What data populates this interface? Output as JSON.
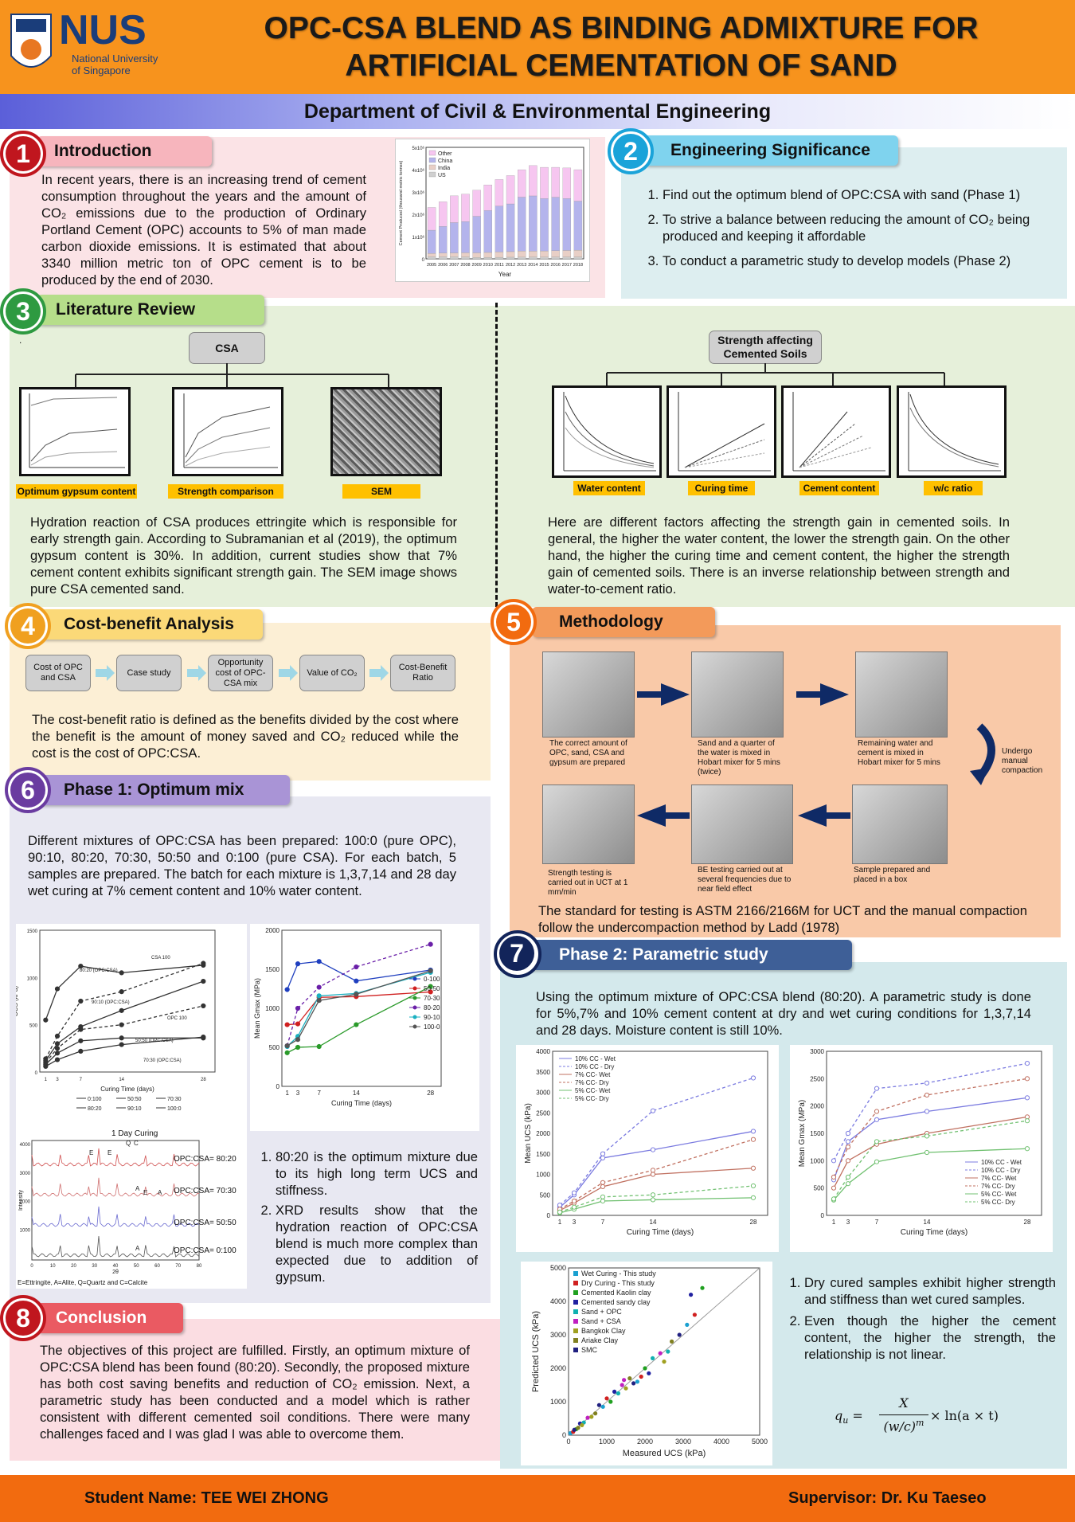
{
  "header": {
    "title": "OPC-CSA BLEND AS BINDING ADMIXTURE FOR\nARTIFICIAL CEMENTATION OF SAND",
    "nus": "NUS",
    "nus_sub1": "National University",
    "nus_sub2": "of Singapore",
    "dept": "Department of Civil & Environmental Engineering"
  },
  "s1": {
    "num": "1",
    "title": "Introduction",
    "text": "In recent years, there is an increasing trend of cement consumption throughout the years and the amount of CO₂ emissions due to the production of Ordinary Portland Cement (OPC) accounts to 5% of man made carbon dioxide emissions. It is estimated that about 3340 million metric ton of OPC cement is to be produced by the end of 2030."
  },
  "s1_chart": {
    "type": "bar",
    "ylabel": "Cement Produced (thousand metric tonnes)",
    "xlabel": "Year",
    "categories": [
      "2005",
      "2006",
      "2007",
      "2008",
      "2009",
      "2010",
      "2011",
      "2012",
      "2013",
      "2014",
      "2015",
      "2016",
      "2017",
      "2018"
    ],
    "legend": [
      "Other",
      "China",
      "India",
      "US"
    ],
    "ytick_labels": [
      "0",
      "1x10⁶",
      "2x10⁶",
      "3x10⁶",
      "4x10⁶",
      "5x10⁶"
    ],
    "ylim": [
      0,
      5000000
    ],
    "colors": [
      "#f6c6f0",
      "#b4b4ec",
      "#e8cfc6",
      "#cfcfcf"
    ],
    "series": [
      {
        "name": "US",
        "values": [
          99000,
          98000,
          96000,
          87000,
          64000,
          67000,
          68000,
          74000,
          77000,
          83000,
          84000,
          85000,
          86000,
          88000
        ]
      },
      {
        "name": "India",
        "values": [
          145000,
          160000,
          170000,
          185000,
          205000,
          220000,
          240000,
          250000,
          270000,
          260000,
          270000,
          280000,
          290000,
          300000
        ]
      },
      {
        "name": "China",
        "values": [
          1040000,
          1200000,
          1360000,
          1400000,
          1640000,
          1880000,
          2060000,
          2140000,
          2420000,
          2480000,
          2350000,
          2400000,
          2330000,
          2200000
        ]
      },
      {
        "name": "Other",
        "values": [
          1020000,
          1100000,
          1200000,
          1230000,
          1170000,
          1150000,
          1190000,
          1270000,
          1230000,
          1360000,
          1400000,
          1340000,
          1370000,
          1410000
        ]
      }
    ]
  },
  "s2": {
    "num": "2",
    "title": "Engineering Significance",
    "items": [
      "Find out the optimum blend of OPC:CSA with sand (Phase 1)",
      "To strive a balance between reducing the amount of CO₂ being produced and keeping it affordable",
      "To conduct a parametric study to develop models (Phase 2)"
    ]
  },
  "s3": {
    "num": "3",
    "title": "Literature Review",
    "dot": ".",
    "csa": "CSA",
    "labels": [
      "Optimum gypsum content",
      "Strength comparison",
      "SEM"
    ],
    "text_left": "Hydration reaction of CSA produces ettringite which is responsible for early strength gain. According to Subramanian et al (2019), the optimum gypsum content is 30%. In addition, current studies show that 7% cement content exhibits significant strength gain. The SEM image shows pure CSA cemented sand.",
    "strength_box": "Strength affecting\nCemented Soils",
    "factors": [
      "Water content",
      "Curing time",
      "Cement content",
      "w/c ratio"
    ],
    "text_right": "Here are different factors affecting the strength gain in cemented soils. In general, the higher the water content, the lower the strength gain. On the other hand, the higher the curing time and cement content, the higher the strength gain of cemented soils. There is an inverse relationship between strength and water-to-cement ratio."
  },
  "s4": {
    "num": "4",
    "title": "Cost-benefit Analysis",
    "flow": [
      "Cost of OPC and CSA",
      "Case study",
      "Opportunity cost of OPC-CSA mix",
      "Value of CO₂",
      "Cost-Benefit Ratio"
    ],
    "text": "The cost-benefit ratio is defined as the benefits divided by the cost where the benefit is the amount of money saved and CO₂ reduced while the cost is the cost of OPC:CSA."
  },
  "s5": {
    "num": "5",
    "title": "Methodology",
    "captions": [
      "The correct amount of OPC, sand, CSA and gypsum are prepared",
      "Sand and a quarter of the water is mixed in Hobart mixer for 5 mins (twice)",
      "Remaining water and cement is mixed in Hobart mixer for 5 mins",
      "Undergo manual compaction",
      "Sample prepared and placed in a box",
      "BE testing carried out at several frequencies due to near field effect",
      "Strength testing is carried out in UCT at 1 mm/min"
    ],
    "text": "The standard for testing is ASTM 2166/2166M for UCT and the manual compaction follow the undercompaction method by Ladd (1978)"
  },
  "s6": {
    "num": "6",
    "title": "Phase 1: Optimum mix",
    "text": "Different mixtures of OPC:CSA has been prepared: 100:0 (pure OPC), 90:10, 80:20, 70:30, 50:50 and 0:100 (pure CSA). For each batch, 5 samples are prepared. The batch for each mixture is 1,3,7,14 and 28 day wet curing at 7% cement content and 10% water content.",
    "items": [
      "80:20 is the optimum mixture due to its high long term UCS and stiffness.",
      "XRD results show that the hydration reaction of OPC:CSA blend is much more complex than expected due to addition of gypsum."
    ],
    "xrd_title": "1 Day Curing",
    "xrd_note": "E=Ettringite, A=Alite, Q=Quartz and C=Calcite",
    "xrd_labels": [
      "OPC:CSA= 80:20",
      "OPC:CSA= 70:30",
      "OPC:CSA= 50:50",
      "OPC:CSA= 0:100"
    ]
  },
  "chart_ucs": {
    "type": "line",
    "xlabel": "Curing Time (days)",
    "ylabel": "UCS (kPa)",
    "x": [
      1,
      3,
      7,
      14,
      28
    ],
    "ylim": [
      0,
      1500
    ],
    "xticks": [
      "1",
      "3",
      "7",
      "14",
      "28"
    ],
    "yticks": [
      "0",
      "500",
      "1000",
      "1500"
    ],
    "series": [
      {
        "name": "0:100",
        "values": [
          550,
          880,
          1120,
          1050,
          1130
        ]
      },
      {
        "name": "80:20",
        "values": [
          140,
          380,
          750,
          850,
          1150
        ]
      },
      {
        "name": "90:10",
        "values": [
          120,
          300,
          480,
          650,
          960
        ]
      },
      {
        "name": "100:0",
        "values": [
          100,
          250,
          450,
          500,
          700
        ]
      },
      {
        "name": "50:50",
        "values": [
          80,
          200,
          330,
          360,
          360
        ]
      },
      {
        "name": "70:30",
        "values": [
          60,
          130,
          220,
          290,
          370
        ]
      }
    ],
    "annotations": [
      "CSA 100",
      "80:20 (OPC:CSA)",
      "OPC 100",
      "90:10 (OPC:CSA)",
      "50:50 (OPC:CSA)",
      "70:30 (OPC:CSA)"
    ],
    "legend": [
      "0:100",
      "50:50",
      "70:30",
      "80:20",
      "90:10",
      "100:0"
    ]
  },
  "chart_gmax": {
    "type": "line",
    "xlabel": "Curing Time (days)",
    "ylabel": "Mean Gmax (MPa)",
    "x": [
      1,
      3,
      7,
      14,
      28
    ],
    "ylim": [
      0,
      2000
    ],
    "xticks": [
      "1",
      "3",
      "7",
      "14",
      "28"
    ],
    "yticks": [
      "0",
      "500",
      "1000",
      "1500",
      "2000"
    ],
    "series": [
      {
        "name": "0-100",
        "values": [
          1240,
          1570,
          1600,
          1350,
          1490
        ]
      },
      {
        "name": "50-50",
        "values": [
          790,
          800,
          1140,
          1150,
          1210
        ]
      },
      {
        "name": "70-30",
        "values": [
          430,
          500,
          510,
          790,
          1280
        ]
      },
      {
        "name": "80-20",
        "values": [
          520,
          1000,
          1270,
          1530,
          1820
        ]
      },
      {
        "name": "90-10",
        "values": [
          510,
          640,
          1160,
          1190,
          1460
        ]
      },
      {
        "name": "100-0",
        "values": [
          520,
          600,
          1100,
          1180,
          1480
        ]
      }
    ],
    "colors": [
      "#1f3fbf",
      "#d02020",
      "#2a9a2a",
      "#6a1fa8",
      "#1ab0c0",
      "#555555"
    ]
  },
  "s7": {
    "num": "7",
    "title": "Phase 2: Parametric study",
    "text": "Using the optimum mixture of OPC:CSA blend (80:20). A parametric study is done for 5%,7% and 10% cement content at dry and wet curing conditions for 1,3,7,14 and 28 days. Moisture content is still 10%.",
    "items": [
      "Dry cured samples exhibit higher strength and stiffness than wet cured samples.",
      "Even though the higher the cement content, the higher the strength, the relationship is not linear."
    ],
    "formula_lhs": "q",
    "formula_sub": "u",
    "formula_eq": " = ",
    "formula_num": "X",
    "formula_den": "(w/c)",
    "formula_exp": "m",
    "formula_rhs": " × ln(a × t)"
  },
  "chart_p2_ucs": {
    "type": "line",
    "xlabel": "Curing Time (days)",
    "ylabel": "Mean UCS (kPa)",
    "x": [
      1,
      3,
      7,
      14,
      28
    ],
    "ylim": [
      0,
      4000
    ],
    "xticks": [
      "1",
      "3",
      "7",
      "14",
      "28"
    ],
    "yticks": [
      "0",
      "500",
      "1000",
      "1500",
      "2000",
      "2500",
      "3000",
      "3500",
      "4000"
    ],
    "series": [
      {
        "name": "10% CC - Wet",
        "values": [
          200,
          500,
          1400,
          1600,
          2050
        ]
      },
      {
        "name": "10% CC - Dry",
        "values": [
          250,
          550,
          1500,
          2550,
          3350
        ]
      },
      {
        "name": "7% CC- Wet",
        "values": [
          120,
          300,
          700,
          1000,
          1150
        ]
      },
      {
        "name": "7% CC- Dry",
        "values": [
          150,
          350,
          800,
          1100,
          1850
        ]
      },
      {
        "name": "5% CC- Wet",
        "values": [
          60,
          150,
          350,
          380,
          430
        ]
      },
      {
        "name": "5% CC- Dry",
        "values": [
          80,
          200,
          450,
          500,
          720
        ]
      }
    ],
    "colors": [
      "#7b7be0",
      "#7b7be0",
      "#c07060",
      "#c07060",
      "#70c070",
      "#70c070"
    ],
    "dashed": [
      false,
      true,
      false,
      true,
      false,
      true
    ]
  },
  "chart_p2_gmax": {
    "type": "line",
    "xlabel": "Curing Time (days)",
    "ylabel": "Mean Gmax (MPa)",
    "x": [
      1,
      3,
      7,
      14,
      28
    ],
    "ylim": [
      0,
      3000
    ],
    "xticks": [
      "1",
      "3",
      "7",
      "14",
      "28"
    ],
    "yticks": [
      "0",
      "500",
      "1000",
      "1500",
      "2000",
      "2500",
      "3000"
    ],
    "series": [
      {
        "name": "10% CC - Wet",
        "values": [
          650,
          1350,
          1750,
          1900,
          2150
        ]
      },
      {
        "name": "10% CC - Dry",
        "values": [
          1000,
          1500,
          2320,
          2420,
          2780
        ]
      },
      {
        "name": "7% CC- Wet",
        "values": [
          500,
          1000,
          1300,
          1500,
          1800
        ]
      },
      {
        "name": "7% CC- Dry",
        "values": [
          700,
          1250,
          1900,
          2200,
          2500
        ]
      },
      {
        "name": "5% CC- Wet",
        "values": [
          280,
          580,
          980,
          1150,
          1220
        ]
      },
      {
        "name": "5% CC- Dry",
        "values": [
          300,
          700,
          1350,
          1450,
          1730
        ]
      }
    ],
    "colors": [
      "#7b7be0",
      "#7b7be0",
      "#c07060",
      "#c07060",
      "#70c070",
      "#70c070"
    ],
    "dashed": [
      false,
      true,
      false,
      true,
      false,
      true
    ]
  },
  "chart_pred": {
    "type": "scatter",
    "xlabel": "Measured UCS (kPa)",
    "ylabel": "Predicted UCS (kPa)",
    "xlim": [
      0,
      5000
    ],
    "ylim": [
      0,
      5000
    ],
    "ticks": [
      "0",
      "1000",
      "2000",
      "3000",
      "4000",
      "5000"
    ],
    "legend": [
      {
        "name": "Wet Curing - This study",
        "color": "#1aa0d0",
        "shape": "square"
      },
      {
        "name": "Dry Curing - This study",
        "color": "#d02020",
        "shape": "circle"
      },
      {
        "name": "Cemented Kaolin clay",
        "color": "#20a020",
        "shape": "triangle"
      },
      {
        "name": "Cemented sandy clay",
        "color": "#2020a0",
        "shape": "tri-down"
      },
      {
        "name": "Sand + OPC",
        "color": "#10b0b0",
        "shape": "diamond"
      },
      {
        "name": "Sand + CSA",
        "color": "#c020c0",
        "shape": "tri-left"
      },
      {
        "name": "Bangkok Clay",
        "color": "#a0a020",
        "shape": "tri-right"
      },
      {
        "name": "Ariake Clay",
        "color": "#808020",
        "shape": "circle"
      },
      {
        "name": "SMC",
        "color": "#202080",
        "shape": "star"
      }
    ],
    "points": [
      [
        50,
        60
      ],
      [
        120,
        100
      ],
      [
        200,
        180
      ],
      [
        300,
        350
      ],
      [
        400,
        380
      ],
      [
        500,
        520
      ],
      [
        600,
        550
      ],
      [
        700,
        650
      ],
      [
        800,
        900
      ],
      [
        900,
        850
      ],
      [
        1000,
        1100
      ],
      [
        1100,
        1000
      ],
      [
        1200,
        1300
      ],
      [
        1300,
        1250
      ],
      [
        1400,
        1500
      ],
      [
        1500,
        1400
      ],
      [
        1600,
        1700
      ],
      [
        1700,
        1550
      ],
      [
        1800,
        1600
      ],
      [
        1900,
        1750
      ],
      [
        2000,
        2000
      ],
      [
        2100,
        1850
      ],
      [
        2200,
        2300
      ],
      [
        2400,
        2450
      ],
      [
        2500,
        2200
      ],
      [
        2700,
        2800
      ],
      [
        2900,
        3000
      ],
      [
        3100,
        3300
      ],
      [
        3300,
        3600
      ],
      [
        3500,
        4400
      ],
      [
        3200,
        4200
      ],
      [
        2600,
        2500
      ],
      [
        1450,
        1650
      ],
      [
        350,
        300
      ],
      [
        250,
        220
      ],
      [
        150,
        160
      ]
    ]
  },
  "footer": {
    "student": "Student Name: TEE WEI ZHONG",
    "supervisor": "Supervisor: Dr. Ku Taeseo"
  }
}
